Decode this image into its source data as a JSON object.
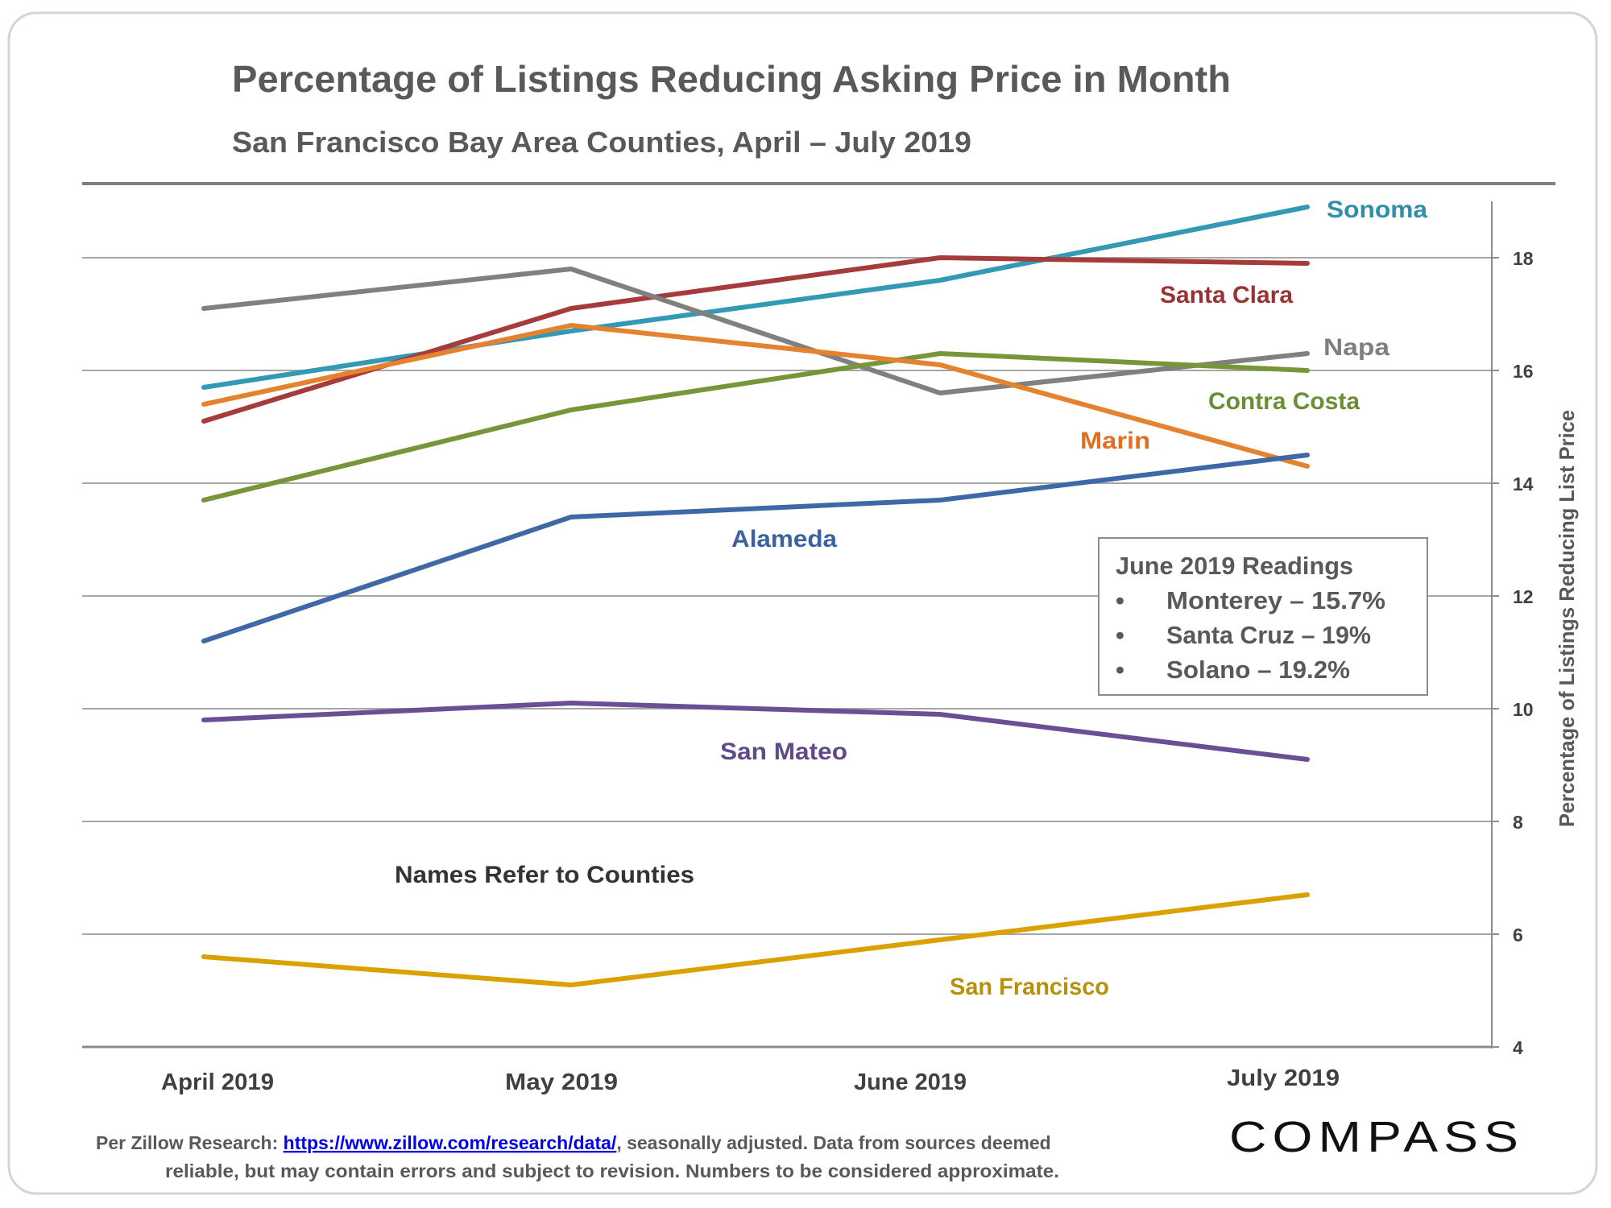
{
  "header": {
    "title": "Percentage of Listings Reducing Asking Price in Month",
    "subtitle": "San Francisco Bay Area Counties, April – July 2019"
  },
  "chart_data": {
    "type": "line",
    "title": "Percentage of Listings Reducing Asking Price in Month",
    "subtitle": "San Francisco Bay Area Counties, April – July 2019",
    "xlabel": "",
    "ylabel": "Percentage of Listings Reducing List Price",
    "categories": [
      "April 2019",
      "May 2019",
      "June 2019",
      "July 2019"
    ],
    "ylim": [
      4,
      19
    ],
    "yticks": [
      4,
      6,
      8,
      10,
      12,
      14,
      16,
      18
    ],
    "y_axis_side": "right",
    "grid": true,
    "legend": "inline-labels",
    "series": [
      {
        "name": "Sonoma",
        "color": "#3399B5",
        "values": [
          15.7,
          16.7,
          17.6,
          18.9
        ]
      },
      {
        "name": "Santa Clara",
        "color": "#A53B3B",
        "values": [
          15.1,
          17.1,
          18.0,
          17.9
        ]
      },
      {
        "name": "Napa",
        "color": "#808080",
        "values": [
          17.1,
          17.8,
          15.6,
          16.3
        ]
      },
      {
        "name": "Contra Costa",
        "color": "#77963A",
        "values": [
          13.7,
          15.3,
          16.3,
          16.0
        ]
      },
      {
        "name": "Marin",
        "color": "#E4822F",
        "values": [
          15.4,
          16.8,
          16.1,
          14.3
        ]
      },
      {
        "name": "Alameda",
        "color": "#3F68A6",
        "values": [
          11.2,
          13.4,
          13.7,
          14.5
        ]
      },
      {
        "name": "San Mateo",
        "color": "#6A4E96",
        "values": [
          9.8,
          10.1,
          9.9,
          9.1
        ]
      },
      {
        "name": "San Francisco",
        "color": "#D9A200",
        "values": [
          5.6,
          5.1,
          5.9,
          6.7
        ]
      }
    ],
    "label_colors": {
      "Sonoma": "#2F8FA8",
      "Santa Clara": "#993333",
      "Napa": "#7F7F7F",
      "Contra Costa": "#6A8E32",
      "Marin": "#E07020",
      "Alameda": "#3A62A0",
      "San Mateo": "#5F4B8B",
      "San Francisco": "#B8900E"
    },
    "annotations": [
      "Names Refer to Counties"
    ]
  },
  "readings_box": {
    "heading": "June 2019 Readings",
    "items": [
      "Monterey – 15.7%",
      "Santa Cruz – 19%",
      "Solano – 19.2%"
    ],
    "bullet": "•"
  },
  "footer": {
    "prefix": "Per Zillow Research:  ",
    "link_text": "https://www.zillow.com/research/data/",
    "line1_suffix": ", seasonally adjusted. Data from sources deemed",
    "line2": "reliable, but may contain errors and subject to revision. Numbers to be considered approximate."
  },
  "brand": {
    "logo_text": "COMPASS"
  }
}
